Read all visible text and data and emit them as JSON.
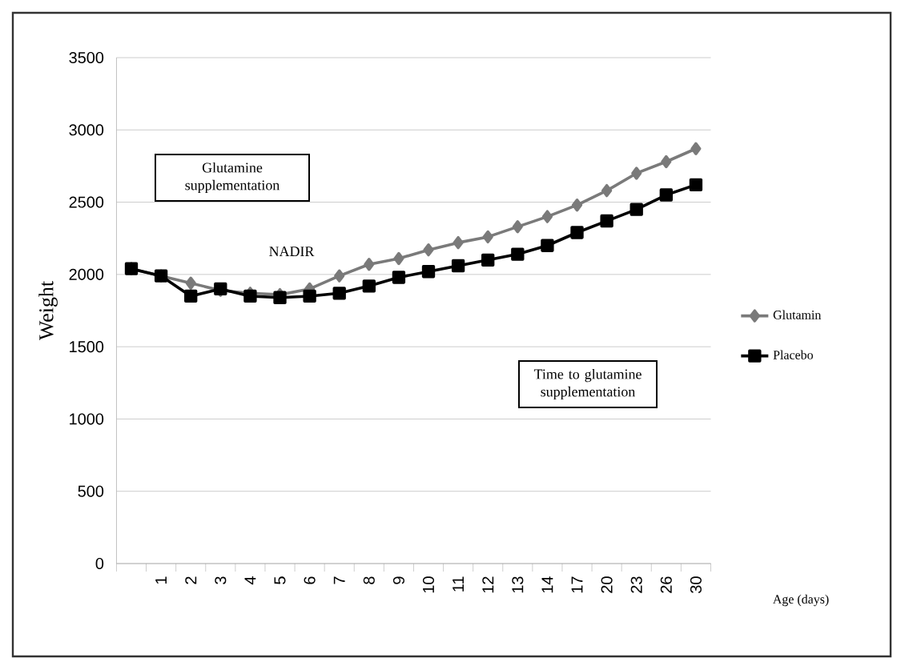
{
  "chart_data": {
    "type": "line",
    "ylabel": "Weight",
    "xlabel": "Age (days)",
    "categories": [
      null,
      "1",
      "2",
      "3",
      "4",
      "5",
      "6",
      "7",
      "8",
      "9",
      "10",
      "11",
      "12",
      "13",
      "14",
      "17",
      "20",
      "23",
      "26",
      "30"
    ],
    "series": [
      {
        "name": "Glutamin",
        "color": "#7a7a7a",
        "marker": "diamond",
        "values": [
          2040,
          1990,
          1940,
          1890,
          1870,
          1860,
          1900,
          1990,
          2070,
          2110,
          2170,
          2220,
          2260,
          2330,
          2400,
          2480,
          2580,
          2700,
          2780,
          2870
        ]
      },
      {
        "name": "Placebo",
        "color": "#000000",
        "marker": "square",
        "values": [
          2040,
          1990,
          1850,
          1900,
          1850,
          1840,
          1850,
          1870,
          1920,
          1980,
          2020,
          2060,
          2100,
          2140,
          2200,
          2290,
          2370,
          2450,
          2550,
          2620
        ]
      }
    ],
    "ylim": [
      0,
      3500
    ],
    "yticks": [
      0,
      500,
      1000,
      1500,
      2000,
      2500,
      3000,
      3500
    ],
    "grid": "y",
    "legend": "right",
    "line_style": "solid",
    "annotations": [
      "Glutamine supplementation",
      "NADIR",
      "Time to glutamine supplementation"
    ]
  }
}
